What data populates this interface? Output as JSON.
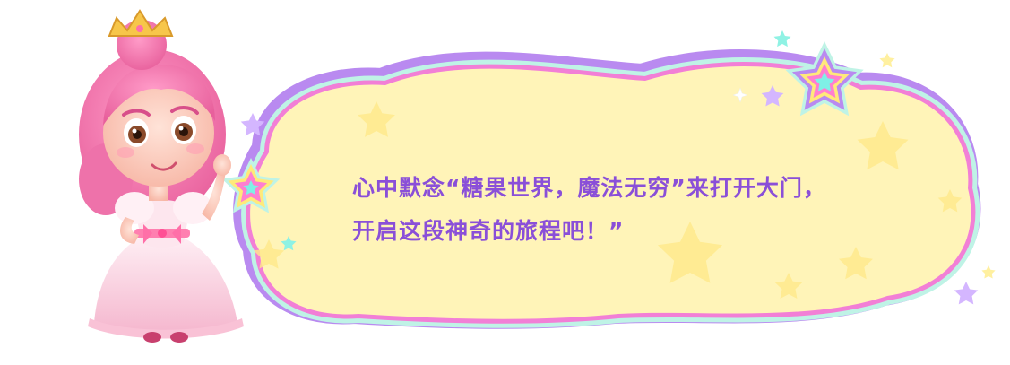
{
  "character": {
    "name_icon": "princess-character"
  },
  "dialog": {
    "line1": "心中默念“糖果世界，魔法无穷”来打开大门，",
    "line2": "开启这段神奇的旅程吧！”"
  },
  "colors": {
    "bubble_fill": "#fff4b8",
    "border_outer": "#b98af0",
    "border_mid": "#f27fd6",
    "border_mint": "#bff3e6",
    "text": "#8a4fd8",
    "star_pink": "#ff7fd0",
    "star_yellow": "#ffe97a",
    "star_purple": "#c9a6ff",
    "star_cyan": "#7ff0e6"
  }
}
